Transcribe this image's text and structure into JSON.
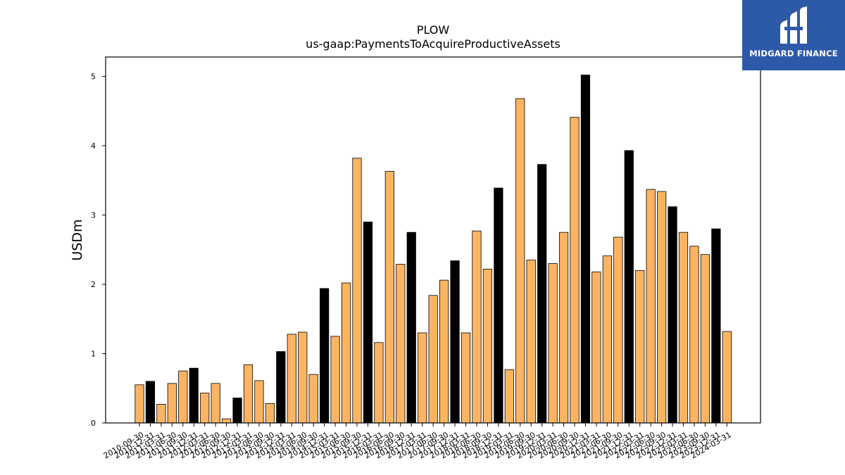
{
  "brand": {
    "name": "MIDGARD FINANCE",
    "bg_color": "#2d5aa8"
  },
  "chart_data": {
    "type": "bar",
    "title": "PLOW",
    "subtitle": "us-gaap:PaymentsToAcquireProductiveAssets",
    "xlabel": "",
    "ylabel": "USDm",
    "ylim": [
      0,
      5.28
    ],
    "yticks": [
      0,
      1,
      2,
      3,
      4,
      5
    ],
    "grid": false,
    "legend": "none",
    "colors": {
      "quarter": "#fdb462",
      "year_end": "#000000",
      "edge": "#000000"
    },
    "categories": [
      "2010-09-30",
      "2010-12-31",
      "2011-03-31",
      "2011-06-30",
      "2011-09-30",
      "2011-12-31",
      "2012-03-31",
      "2012-06-30",
      "2012-09-30",
      "2012-12-31",
      "2013-03-31",
      "2013-06-30",
      "2013-09-30",
      "2013-12-31",
      "2014-03-31",
      "2014-06-30",
      "2014-09-30",
      "2014-12-31",
      "2015-03-31",
      "2015-06-30",
      "2015-09-30",
      "2015-12-31",
      "2016-03-31",
      "2016-06-30",
      "2016-09-30",
      "2016-12-31",
      "2017-03-31",
      "2017-06-30",
      "2017-09-30",
      "2017-12-31",
      "2018-03-31",
      "2018-06-30",
      "2018-09-30",
      "2018-12-31",
      "2019-03-31",
      "2019-06-30",
      "2019-09-30",
      "2019-12-31",
      "2020-03-31",
      "2020-06-30",
      "2020-09-30",
      "2020-12-31",
      "2021-03-31",
      "2021-06-30",
      "2021-09-30",
      "2021-12-31",
      "2022-03-31",
      "2022-06-30",
      "2022-09-30",
      "2022-12-31",
      "2023-03-31",
      "2023-06-30",
      "2023-09-30",
      "2023-12-31",
      "2024-03-31"
    ],
    "values": [
      0.55,
      0.6,
      0.27,
      0.57,
      0.75,
      0.79,
      0.43,
      0.57,
      0.06,
      0.36,
      0.84,
      0.61,
      0.28,
      1.03,
      1.28,
      1.31,
      0.7,
      1.94,
      1.25,
      2.02,
      3.82,
      2.9,
      1.16,
      3.63,
      2.29,
      2.75,
      1.3,
      1.84,
      2.06,
      2.34,
      1.3,
      2.77,
      2.22,
      3.39,
      0.77,
      4.68,
      2.35,
      3.73,
      2.3,
      2.75,
      4.41,
      5.02,
      2.18,
      2.41,
      2.68,
      3.93,
      2.2,
      3.37,
      3.34,
      3.12,
      2.75,
      2.55,
      2.43,
      2.8,
      1.32
    ]
  }
}
